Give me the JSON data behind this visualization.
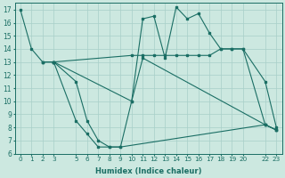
{
  "xlabel": "Humidex (Indice chaleur)",
  "bg_color": "#cce8e0",
  "grid_color": "#a8cfc8",
  "line_color": "#1a6e64",
  "ylim": [
    6,
    17.5
  ],
  "xlim": [
    -0.5,
    23.5
  ],
  "yticks": [
    6,
    7,
    8,
    9,
    10,
    11,
    12,
    13,
    14,
    15,
    16,
    17
  ],
  "xtick_positions": [
    0,
    1,
    2,
    3,
    5,
    6,
    7,
    8,
    9,
    10,
    11,
    12,
    13,
    14,
    15,
    16,
    17,
    18,
    19,
    20,
    22,
    23
  ],
  "xtick_labels": [
    "0",
    "1",
    "2",
    "3",
    "5",
    "6",
    "7",
    "8",
    "9",
    "10",
    "11",
    "12",
    "13",
    "14",
    "15",
    "16",
    "17",
    "18",
    "19",
    "20",
    "22",
    "23"
  ],
  "lines": [
    {
      "x": [
        0,
        1,
        2,
        3
      ],
      "y": [
        17,
        14,
        13,
        13
      ]
    },
    {
      "x": [
        2,
        3,
        10,
        11,
        12,
        13,
        14,
        15,
        16,
        17,
        18,
        19,
        20,
        22,
        23
      ],
      "y": [
        13,
        13,
        13.5,
        13.5,
        13.5,
        13.5,
        13.5,
        13.5,
        13.5,
        13.5,
        14,
        14,
        14,
        11.5,
        8
      ]
    },
    {
      "x": [
        3,
        10,
        11,
        12,
        13,
        14,
        15,
        16,
        17,
        18,
        19,
        20,
        22,
        23
      ],
      "y": [
        13,
        10,
        16.3,
        16.5,
        13.3,
        17.2,
        16.3,
        16.7,
        15.2,
        14,
        14,
        14,
        8.2,
        7.8
      ]
    },
    {
      "x": [
        2,
        3,
        5,
        6,
        7,
        8,
        9,
        10,
        11,
        22,
        23
      ],
      "y": [
        13,
        13,
        11.5,
        8.5,
        7,
        6.5,
        6.5,
        10,
        13.3,
        8.2,
        7.8
      ]
    },
    {
      "x": [
        3,
        5,
        6,
        7,
        8,
        9,
        22,
        23
      ],
      "y": [
        13,
        8.5,
        7.5,
        6.5,
        6.5,
        6.5,
        8.2,
        7.8
      ]
    }
  ]
}
